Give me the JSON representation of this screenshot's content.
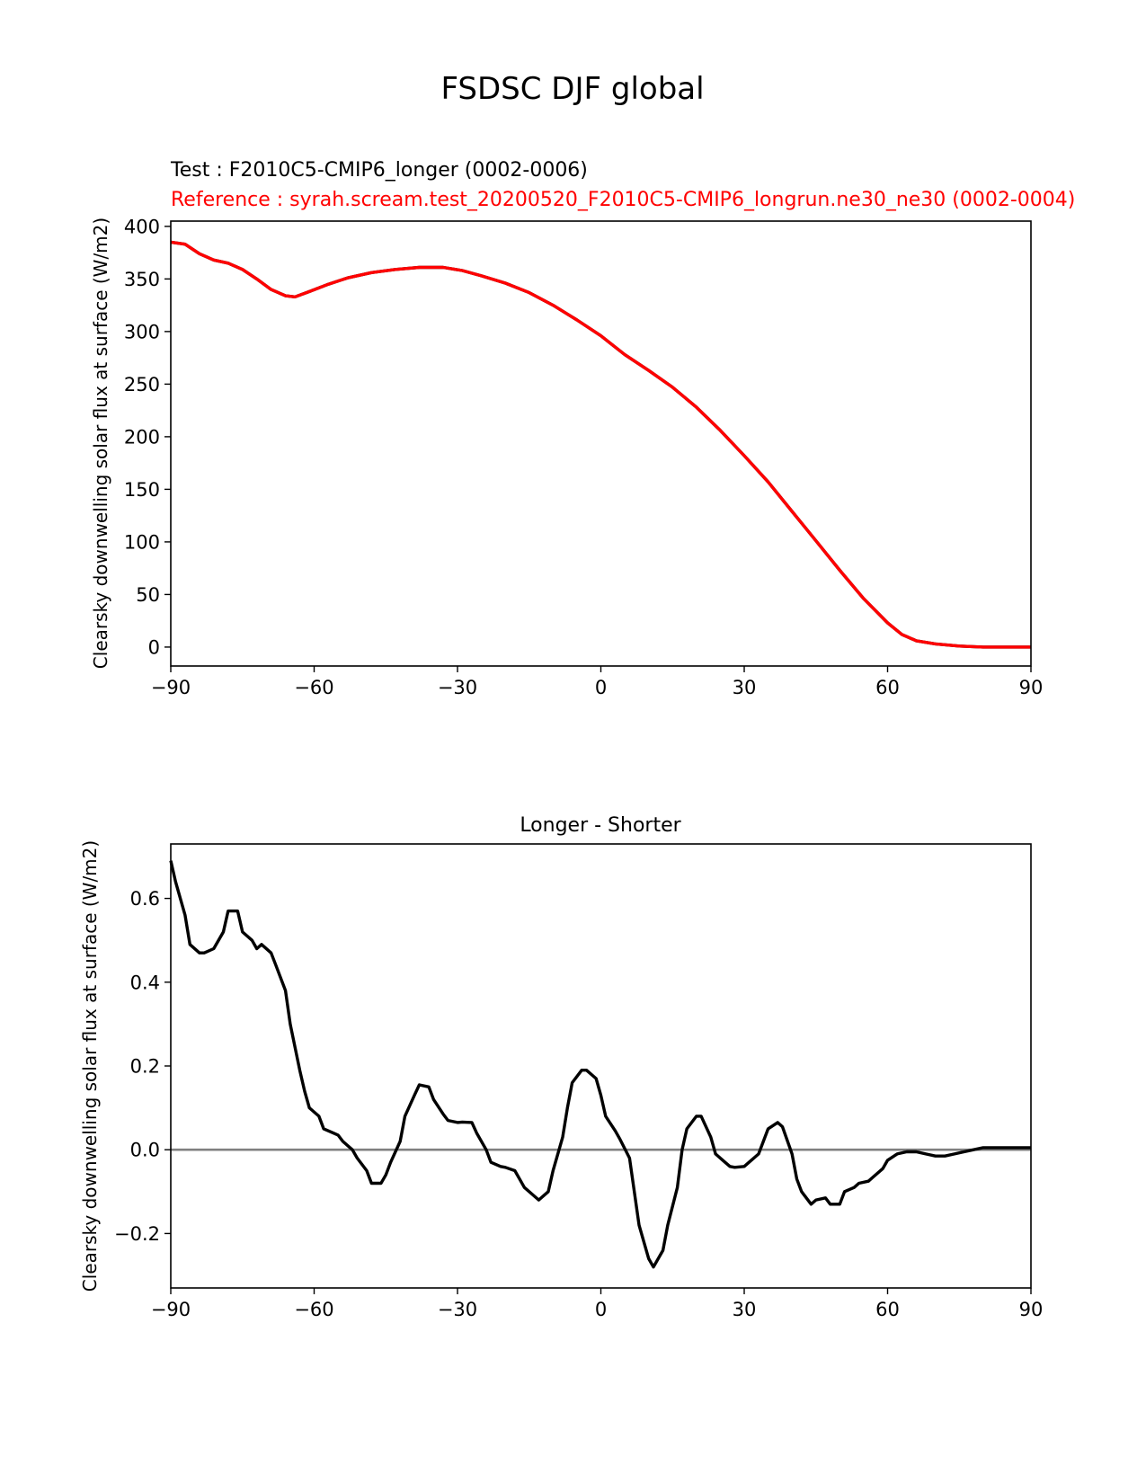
{
  "figure": {
    "suptitle": "FSDSC DJF global"
  },
  "chart_data": [
    {
      "type": "line",
      "title_test": "Test : F2010C5-CMIP6_longer (0002-0006)",
      "title_reference": "Reference : syrah.scream.test_20200520_F2010C5-CMIP6_longrun.ne30_ne30 (0002-0004)",
      "xlabel": "",
      "ylabel": "Clearsky downwelling solar flux at surface (W/m2)",
      "xlim": [
        -90,
        90
      ],
      "ylim": [
        -18,
        405
      ],
      "xticks": [
        -90,
        -60,
        -30,
        0,
        30,
        60,
        90
      ],
      "xtick_labels": [
        "−90",
        "−60",
        "−30",
        "0",
        "30",
        "60",
        "90"
      ],
      "yticks": [
        0,
        50,
        100,
        150,
        200,
        250,
        300,
        350,
        400
      ],
      "ytick_labels": [
        "0",
        "50",
        "100",
        "150",
        "200",
        "250",
        "300",
        "350",
        "400"
      ],
      "grid": false,
      "series": [
        {
          "color": "#000000",
          "x": [
            -90,
            -87,
            -84,
            -81,
            -78,
            -75,
            -72,
            -69,
            -66,
            -64,
            -61,
            -57,
            -53,
            -48,
            -43,
            -38,
            -33,
            -29,
            -25,
            -20,
            -15,
            -10,
            -5,
            0,
            5,
            10,
            15,
            20,
            25,
            30,
            35,
            40,
            45,
            50,
            55,
            60,
            63,
            66,
            70,
            75,
            80,
            85,
            90
          ],
          "y": [
            385,
            383,
            374,
            368,
            365,
            359,
            350,
            340,
            334,
            333,
            338,
            345,
            351,
            356,
            359,
            361,
            361,
            358,
            353,
            346,
            337,
            325,
            311,
            296,
            278,
            263,
            247,
            228,
            206,
            182,
            157,
            129,
            101,
            73,
            46,
            23,
            12,
            6,
            3,
            1,
            0,
            0,
            0
          ]
        },
        {
          "color": "#ff0000",
          "x": [
            -90,
            -87,
            -84,
            -81,
            -78,
            -75,
            -72,
            -69,
            -66,
            -64,
            -61,
            -57,
            -53,
            -48,
            -43,
            -38,
            -33,
            -29,
            -25,
            -20,
            -15,
            -10,
            -5,
            0,
            5,
            10,
            15,
            20,
            25,
            30,
            35,
            40,
            45,
            50,
            55,
            60,
            63,
            66,
            70,
            75,
            80,
            85,
            90
          ],
          "y": [
            385,
            383,
            374,
            368,
            365,
            359,
            350,
            340,
            334,
            333,
            338,
            345,
            351,
            356,
            359,
            361,
            361,
            358,
            353,
            346,
            337,
            325,
            311,
            296,
            278,
            263,
            247,
            228,
            206,
            182,
            157,
            129,
            101,
            73,
            46,
            23,
            12,
            6,
            3,
            1,
            0,
            0,
            0
          ]
        }
      ]
    },
    {
      "type": "line",
      "title": "Longer - Shorter",
      "xlabel": "",
      "ylabel": "Clearsky downwelling solar flux at surface (W/m2)",
      "xlim": [
        -90,
        90
      ],
      "ylim": [
        -0.33,
        0.73
      ],
      "xticks": [
        -90,
        -60,
        -30,
        0,
        30,
        60,
        90
      ],
      "xtick_labels": [
        "−90",
        "−60",
        "−30",
        "0",
        "30",
        "60",
        "90"
      ],
      "yticks": [
        -0.2,
        0.0,
        0.2,
        0.4,
        0.6
      ],
      "ytick_labels": [
        "−0.2",
        "0.0",
        "0.2",
        "0.4",
        "0.6"
      ],
      "grid": false,
      "zero_line": {
        "y": 0,
        "color": "#808080"
      },
      "series": [
        {
          "color": "#000000",
          "x": [
            -90,
            -89,
            -87,
            -86,
            -84,
            -83,
            -81,
            -79,
            -78,
            -76,
            -75,
            -73,
            -72,
            -71,
            -69,
            -68,
            -66,
            -65,
            -63,
            -62,
            -61,
            -59,
            -58,
            -56,
            -55,
            -54,
            -52,
            -51,
            -49,
            -48,
            -46,
            -45,
            -44,
            -42,
            -41,
            -39,
            -38,
            -36,
            -35,
            -33,
            -32,
            -30,
            -29,
            -27,
            -26,
            -24,
            -23,
            -21,
            -20,
            -18,
            -17,
            -16,
            -14,
            -13,
            -11,
            -10,
            -8,
            -7,
            -6,
            -4,
            -3,
            -1,
            0,
            1,
            3,
            4,
            6,
            7,
            8,
            10,
            11,
            13,
            14,
            16,
            17,
            18,
            20,
            21,
            23,
            24,
            26,
            27,
            28,
            30,
            31,
            33,
            34,
            35,
            37,
            38,
            40,
            41,
            42,
            44,
            45,
            47,
            48,
            50,
            51,
            53,
            54,
            56,
            57,
            59,
            60,
            62,
            64,
            66,
            68,
            70,
            72,
            74,
            76,
            78,
            80,
            83,
            86,
            90
          ],
          "y": [
            0.69,
            0.64,
            0.56,
            0.49,
            0.47,
            0.47,
            0.48,
            0.52,
            0.57,
            0.57,
            0.52,
            0.5,
            0.48,
            0.49,
            0.47,
            0.44,
            0.38,
            0.3,
            0.19,
            0.14,
            0.1,
            0.08,
            0.05,
            0.04,
            0.035,
            0.02,
            0.0,
            -0.02,
            -0.05,
            -0.08,
            -0.08,
            -0.06,
            -0.03,
            0.02,
            0.08,
            0.13,
            0.155,
            0.15,
            0.12,
            0.085,
            0.07,
            0.065,
            0.066,
            0.065,
            0.04,
            0.0,
            -0.03,
            -0.04,
            -0.042,
            -0.05,
            -0.07,
            -0.09,
            -0.11,
            -0.12,
            -0.1,
            -0.05,
            0.03,
            0.1,
            0.16,
            0.19,
            0.19,
            0.17,
            0.13,
            0.08,
            0.045,
            0.025,
            -0.02,
            -0.1,
            -0.18,
            -0.26,
            -0.28,
            -0.24,
            -0.18,
            -0.09,
            0.0,
            0.05,
            0.08,
            0.08,
            0.03,
            -0.01,
            -0.03,
            -0.04,
            -0.042,
            -0.04,
            -0.03,
            -0.01,
            0.02,
            0.05,
            0.065,
            0.055,
            -0.01,
            -0.07,
            -0.1,
            -0.13,
            -0.12,
            -0.115,
            -0.13,
            -0.13,
            -0.1,
            -0.09,
            -0.08,
            -0.075,
            -0.065,
            -0.045,
            -0.025,
            -0.01,
            -0.005,
            -0.005,
            -0.01,
            -0.015,
            -0.015,
            -0.01,
            -0.005,
            0.0,
            0.005,
            0.005,
            0.005,
            0.005
          ]
        }
      ]
    }
  ]
}
